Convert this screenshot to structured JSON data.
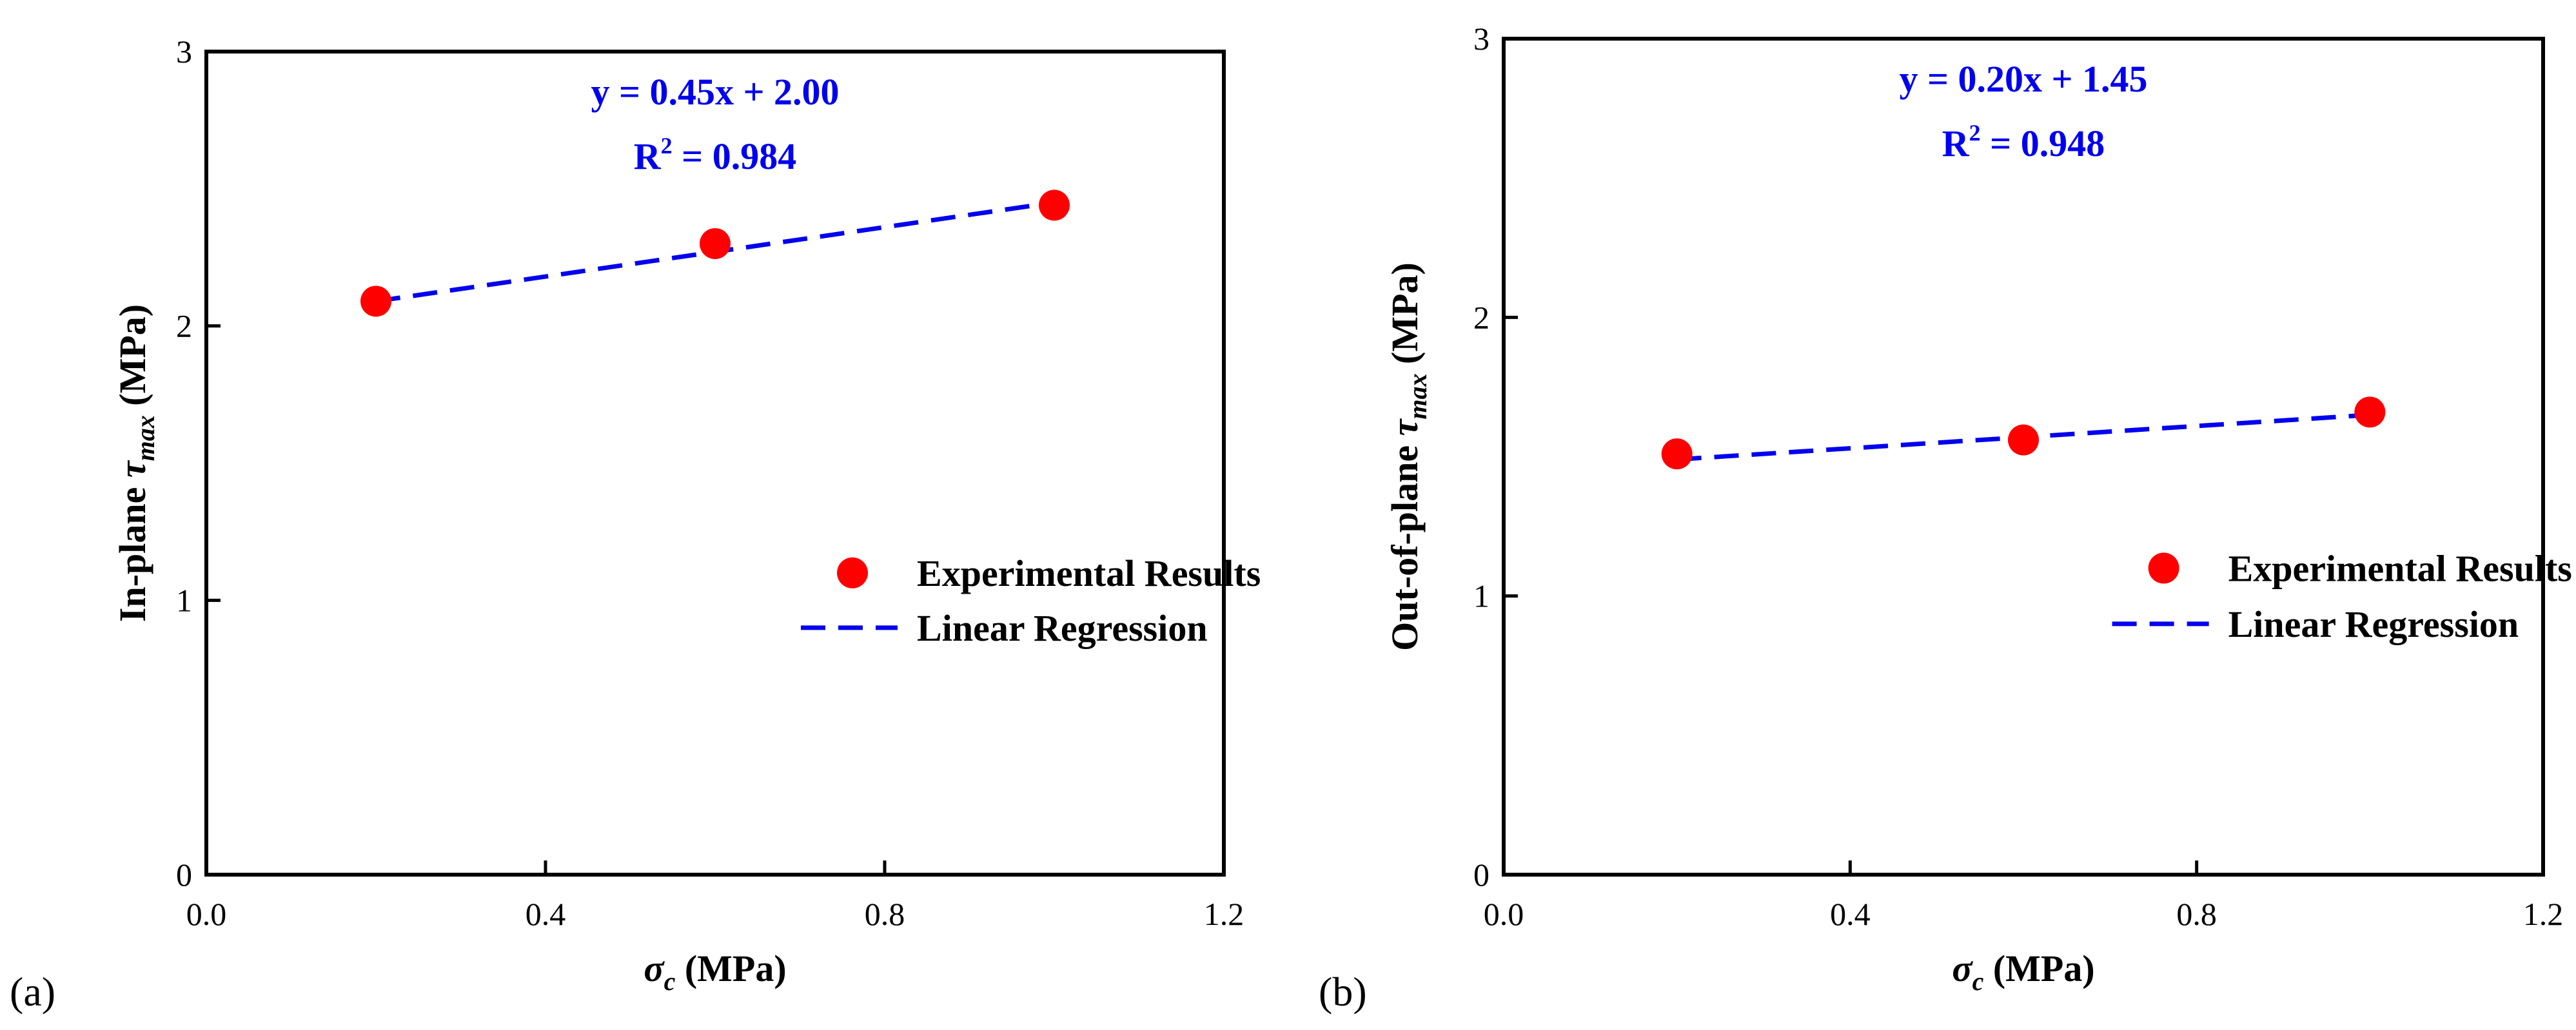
{
  "chart_data": [
    {
      "type": "scatter",
      "panel_label": "(a)",
      "xlabel": {
        "symbol": "σ",
        "sub": "c",
        "unit": " (MPa)"
      },
      "ylabel": {
        "prefix": "In-plane ",
        "symbol": "τ",
        "sub": "max",
        "unit": " (MPa)"
      },
      "xlim": [
        0.0,
        1.2
      ],
      "ylim": [
        0,
        3
      ],
      "x_ticks": [
        "0.0",
        "0.4",
        "0.8",
        "1.2"
      ],
      "y_ticks": [
        "0",
        "1",
        "2",
        "3"
      ],
      "series": [
        {
          "name": "Experimental Results",
          "kind": "points",
          "color": "#ff0000",
          "x": [
            0.2,
            0.6,
            1.0
          ],
          "y": [
            2.09,
            2.3,
            2.44
          ]
        },
        {
          "name": "Linear Regression",
          "kind": "dashed-line",
          "color": "#0000ee",
          "slope": 0.45,
          "intercept": 2.0,
          "x_range": [
            0.2,
            1.0
          ]
        }
      ],
      "equation": "y = 0.45x + 2.00",
      "r2_prefix": "R",
      "r2_exp": "2",
      "r2_value": " = 0.984",
      "legend_position": "middle-right"
    },
    {
      "type": "scatter",
      "panel_label": "(b)",
      "xlabel": {
        "symbol": "σ",
        "sub": "c",
        "unit": " (MPa)"
      },
      "ylabel": {
        "prefix": "Out-of-plane ",
        "symbol": "τ",
        "sub": "max",
        "unit": " (MPa)"
      },
      "xlim": [
        0.0,
        1.2
      ],
      "ylim": [
        0,
        3
      ],
      "x_ticks": [
        "0.0",
        "0.4",
        "0.8",
        "1.2"
      ],
      "y_ticks": [
        "0",
        "1",
        "2",
        "3"
      ],
      "series": [
        {
          "name": "Experimental Results",
          "kind": "points",
          "color": "#ff0000",
          "x": [
            0.2,
            0.6,
            1.0
          ],
          "y": [
            1.51,
            1.56,
            1.66
          ]
        },
        {
          "name": "Linear Regression",
          "kind": "dashed-line",
          "color": "#0000ee",
          "slope": 0.2,
          "intercept": 1.45,
          "x_range": [
            0.2,
            1.0
          ]
        }
      ],
      "equation": "y = 0.20x + 1.45",
      "r2_prefix": "R",
      "r2_exp": "2",
      "r2_value": " = 0.948",
      "legend_position": "middle-right"
    }
  ]
}
